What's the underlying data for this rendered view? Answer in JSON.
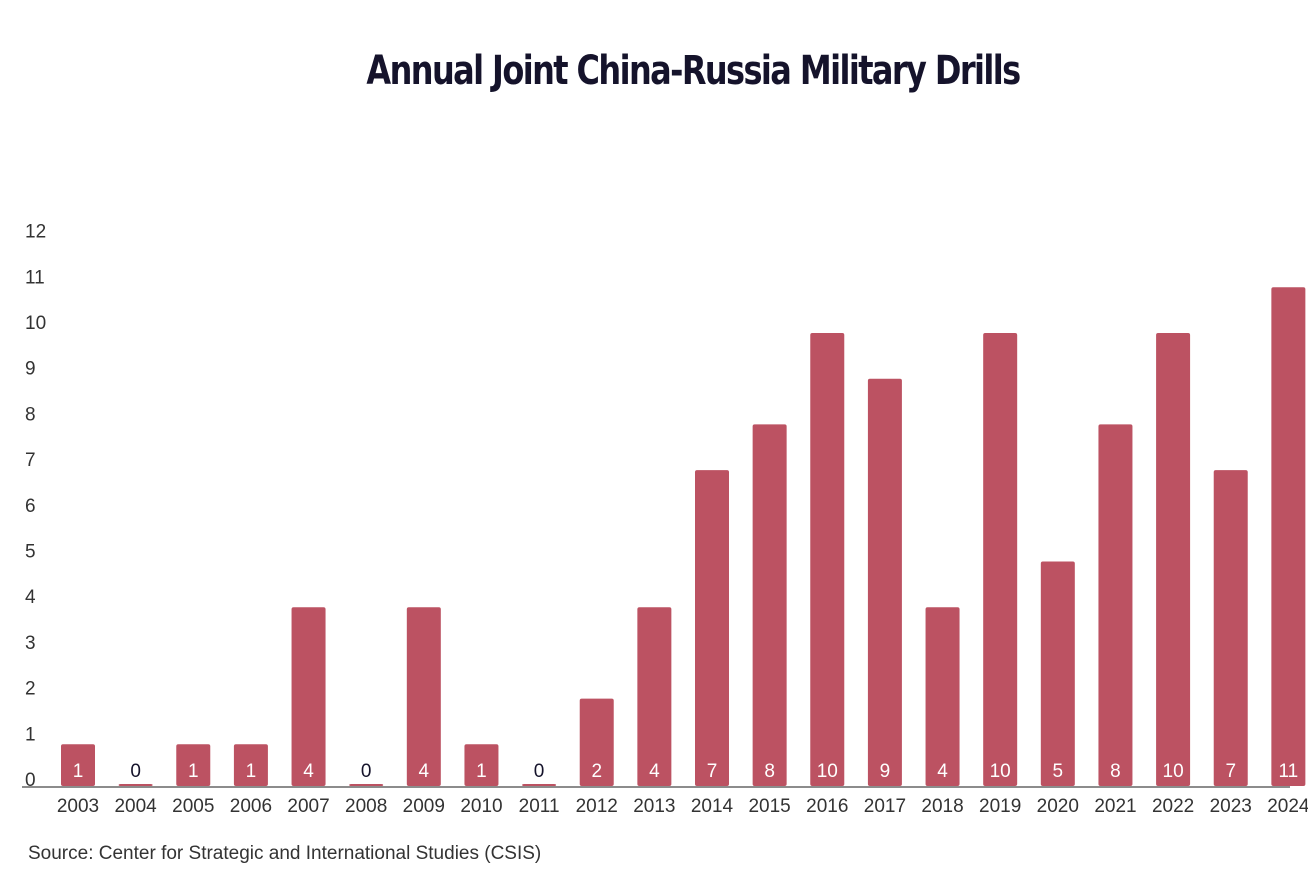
{
  "chart_data": {
    "type": "bar",
    "title": "Annual Joint China-Russia Military Drills",
    "categories": [
      "2003",
      "2004",
      "2005",
      "2006",
      "2007",
      "2008",
      "2009",
      "2010",
      "2011",
      "2012",
      "2013",
      "2014",
      "2015",
      "2016",
      "2017",
      "2018",
      "2019",
      "2020",
      "2021",
      "2022",
      "2023",
      "2024"
    ],
    "values": [
      1,
      0,
      1,
      1,
      4,
      0,
      4,
      1,
      0,
      2,
      4,
      7,
      8,
      10,
      9,
      4,
      10,
      5,
      8,
      10,
      7,
      11
    ],
    "xlabel": "",
    "ylabel": "",
    "ylim": [
      0,
      12
    ],
    "yticks": [
      0,
      1,
      2,
      3,
      4,
      5,
      6,
      7,
      8,
      9,
      10,
      11,
      12
    ],
    "grid": false,
    "data_labels": true,
    "bar_color": "#bc5262",
    "label_color_inside": "#ffffff",
    "label_color_zero": "#15132b"
  },
  "source": "Source: Center for Strategic and International Studies (CSIS)"
}
